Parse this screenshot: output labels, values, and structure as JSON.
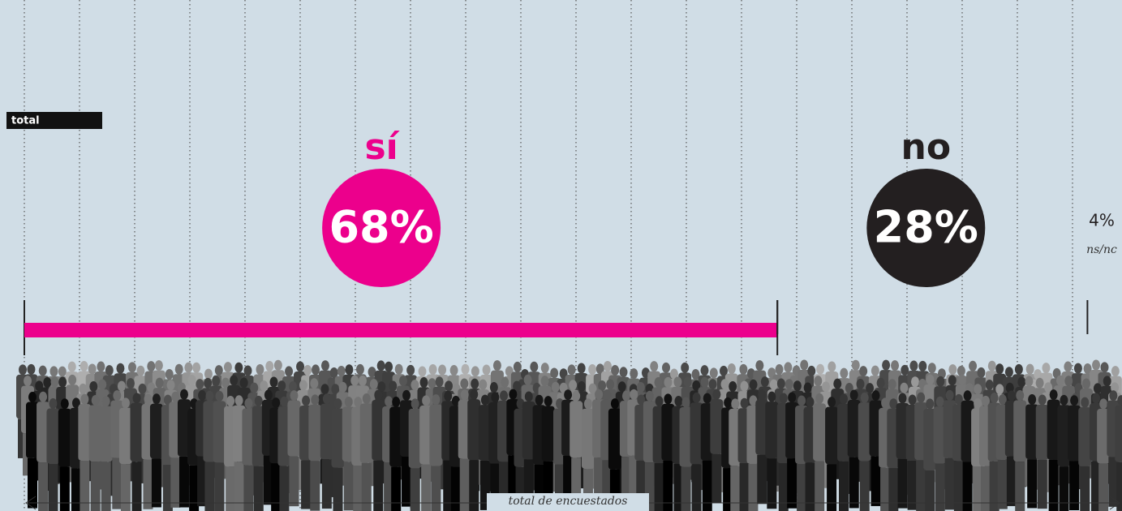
{
  "chart_data": {
    "type": "bar",
    "label": "total",
    "caption": "total de encuestados",
    "categories": [
      "sí",
      "no",
      "ns/nc"
    ],
    "values": [
      68,
      28,
      4
    ],
    "value_labels": [
      "68%",
      "28%",
      "4%"
    ],
    "colors": [
      "#ec008c",
      "#231f20",
      "#231f20"
    ],
    "xlim": [
      0,
      100
    ]
  }
}
